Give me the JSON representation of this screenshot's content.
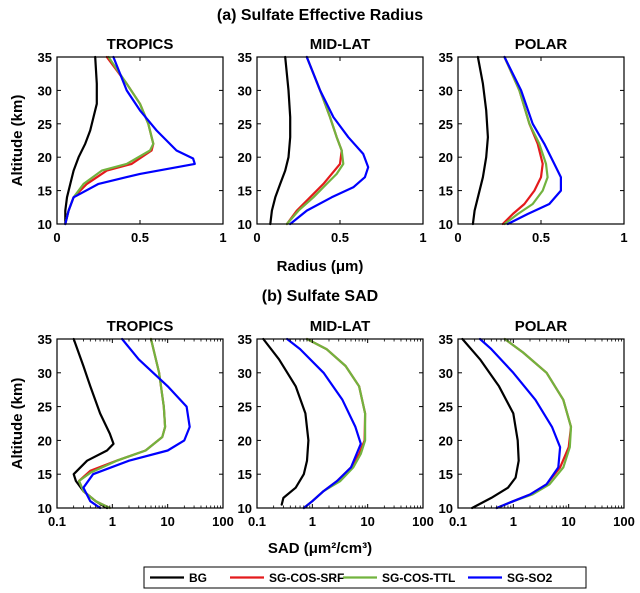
{
  "chart_data": [
    {
      "type": "line",
      "section_title": "(a) Sulfate Effective Radius",
      "title": "TROPICS",
      "ylabel": "Altitude (km)",
      "xlabel": "",
      "xscale": "linear",
      "xlim": [
        0,
        1
      ],
      "ylim": [
        10,
        35
      ],
      "xticks": [
        "0",
        "0.5",
        "1"
      ],
      "yticks": [
        "10",
        "15",
        "20",
        "25",
        "30",
        "35"
      ],
      "series": [
        {
          "name": "BG",
          "color": "#000000",
          "x": [
            0.05,
            0.05,
            0.06,
            0.08,
            0.1,
            0.13,
            0.17,
            0.2,
            0.22,
            0.24,
            0.24,
            0.23
          ],
          "y": [
            10,
            12,
            14,
            16,
            18,
            20,
            22,
            24,
            26,
            28,
            31,
            35
          ]
        },
        {
          "name": "SG-COS-SRF",
          "color": "#e41a1c",
          "x": [
            0.05,
            0.07,
            0.1,
            0.18,
            0.3,
            0.45,
            0.57,
            0.58,
            0.55,
            0.5,
            0.42,
            0.3
          ],
          "y": [
            10,
            12,
            14,
            16,
            18,
            19,
            21,
            22,
            25,
            28,
            31,
            35
          ]
        },
        {
          "name": "SG-COS-TTL",
          "color": "#72b33e",
          "x": [
            0.05,
            0.07,
            0.1,
            0.16,
            0.27,
            0.42,
            0.56,
            0.58,
            0.55,
            0.5,
            0.42,
            0.31
          ],
          "y": [
            10,
            12,
            14,
            16,
            18,
            19,
            21,
            22,
            25,
            28,
            31,
            35
          ]
        },
        {
          "name": "SG-SO2",
          "color": "#0000ff",
          "x": [
            0.05,
            0.07,
            0.1,
            0.25,
            0.5,
            0.83,
            0.82,
            0.72,
            0.6,
            0.5,
            0.42,
            0.34
          ],
          "y": [
            10,
            12,
            14,
            16,
            17.5,
            19,
            19.8,
            21,
            24,
            27,
            30,
            35
          ]
        }
      ]
    },
    {
      "type": "line",
      "title": "MID-LAT",
      "xlabel": "Radius (μm)",
      "ylabel": "",
      "xscale": "linear",
      "xlim": [
        0,
        1
      ],
      "ylim": [
        10,
        35
      ],
      "xticks": [
        "0",
        "0.5",
        "1"
      ],
      "yticks": [
        "10",
        "15",
        "20",
        "25",
        "30",
        "35"
      ],
      "series": [
        {
          "name": "BG",
          "color": "#000000",
          "x": [
            0.08,
            0.09,
            0.11,
            0.14,
            0.17,
            0.19,
            0.2,
            0.2,
            0.19,
            0.17
          ],
          "y": [
            10,
            12,
            14,
            16,
            18,
            20,
            23,
            26,
            30,
            35
          ]
        },
        {
          "name": "SG-COS-SRF",
          "color": "#e41a1c",
          "x": [
            0.18,
            0.24,
            0.32,
            0.4,
            0.45,
            0.5,
            0.51,
            0.48,
            0.44,
            0.38,
            0.3
          ],
          "y": [
            10,
            12,
            14,
            16,
            17.5,
            19,
            21,
            23,
            26,
            30,
            35
          ]
        },
        {
          "name": "SG-COS-TTL",
          "color": "#72b33e",
          "x": [
            0.18,
            0.25,
            0.34,
            0.42,
            0.48,
            0.52,
            0.51,
            0.48,
            0.44,
            0.38,
            0.3
          ],
          "y": [
            10,
            12,
            14,
            16,
            17.5,
            19,
            21,
            23,
            26,
            30,
            35
          ]
        },
        {
          "name": "SG-SO2",
          "color": "#0000ff",
          "x": [
            0.2,
            0.3,
            0.45,
            0.58,
            0.65,
            0.67,
            0.64,
            0.55,
            0.46,
            0.38,
            0.3
          ],
          "y": [
            10,
            12,
            14,
            15.5,
            17,
            18.5,
            20.5,
            23,
            26,
            30,
            35
          ]
        }
      ]
    },
    {
      "type": "line",
      "title": "POLAR",
      "xlabel": "",
      "ylabel": "",
      "xscale": "linear",
      "xlim": [
        0,
        1
      ],
      "ylim": [
        10,
        35
      ],
      "xticks": [
        "0",
        "0.5",
        "1"
      ],
      "yticks": [
        "10",
        "15",
        "20",
        "25",
        "30",
        "35"
      ],
      "series": [
        {
          "name": "BG",
          "color": "#000000",
          "x": [
            0.09,
            0.1,
            0.12,
            0.15,
            0.17,
            0.18,
            0.17,
            0.15,
            0.12
          ],
          "y": [
            10,
            12,
            14,
            17,
            20,
            23,
            27,
            31,
            35
          ]
        },
        {
          "name": "SG-COS-SRF",
          "color": "#e41a1c",
          "x": [
            0.27,
            0.33,
            0.4,
            0.46,
            0.5,
            0.51,
            0.48,
            0.43,
            0.37,
            0.28
          ],
          "y": [
            10,
            11.5,
            13,
            15,
            17,
            19,
            22,
            25,
            30,
            35
          ]
        },
        {
          "name": "SG-COS-TTL",
          "color": "#72b33e",
          "x": [
            0.28,
            0.36,
            0.45,
            0.51,
            0.54,
            0.53,
            0.49,
            0.43,
            0.37,
            0.28
          ],
          "y": [
            10,
            11.5,
            13,
            15,
            17,
            19,
            22,
            25,
            30,
            35
          ]
        },
        {
          "name": "SG-SO2",
          "color": "#0000ff",
          "x": [
            0.3,
            0.42,
            0.55,
            0.62,
            0.62,
            0.58,
            0.52,
            0.45,
            0.38,
            0.28
          ],
          "y": [
            10,
            11.5,
            13,
            15,
            17,
            19,
            22,
            25,
            30,
            35
          ]
        }
      ]
    },
    {
      "type": "line",
      "section_title": "(b) Sulfate SAD",
      "title": "TROPICS",
      "ylabel": "Altitude (km)",
      "xlabel": "",
      "xscale": "log",
      "xlim": [
        0.1,
        100
      ],
      "ylim": [
        10,
        35
      ],
      "xticks": [
        "0.1",
        "1",
        "10",
        "100"
      ],
      "yticks": [
        "10",
        "15",
        "20",
        "25",
        "30",
        "35"
      ],
      "series": [
        {
          "name": "BG",
          "color": "#000000",
          "x": [
            0.8,
            0.5,
            0.3,
            0.22,
            0.2,
            0.35,
            0.8,
            1.05,
            0.9,
            0.6,
            0.4,
            0.3,
            0.2
          ],
          "y": [
            10,
            11,
            12.5,
            14,
            15,
            17,
            18.5,
            19.5,
            21,
            24,
            28,
            31,
            35
          ]
        },
        {
          "name": "SG-COS-SRF",
          "color": "#e41a1c",
          "x": [
            0.9,
            0.5,
            0.3,
            0.25,
            0.4,
            1.2,
            4,
            8,
            9,
            8.5,
            7,
            5
          ],
          "y": [
            10,
            11,
            12.5,
            14,
            15.5,
            17,
            18.5,
            20.5,
            22,
            25,
            30,
            35
          ]
        },
        {
          "name": "SG-COS-TTL",
          "color": "#72b33e",
          "x": [
            0.9,
            0.5,
            0.3,
            0.25,
            0.4,
            1.2,
            4,
            8,
            9,
            8.5,
            7,
            5
          ],
          "y": [
            10,
            11,
            12.5,
            14,
            15.2,
            17,
            18.5,
            20.5,
            22,
            25,
            30,
            35
          ]
        },
        {
          "name": "SG-SO2",
          "color": "#0000ff",
          "x": [
            0.6,
            0.4,
            0.3,
            0.45,
            2,
            10,
            20,
            25,
            22,
            10,
            3,
            1.5
          ],
          "y": [
            10,
            11,
            13,
            15,
            17,
            18.5,
            20,
            22,
            25,
            28,
            32,
            35
          ]
        }
      ]
    },
    {
      "type": "line",
      "title": "MID-LAT",
      "xlabel": "SAD (μm²/cm³)",
      "ylabel": "",
      "xscale": "log",
      "xlim": [
        0.1,
        100
      ],
      "ylim": [
        10,
        35
      ],
      "xticks": [
        "0.1",
        "1",
        "10",
        "100"
      ],
      "yticks": [
        "10",
        "15",
        "20",
        "25",
        "30",
        "35"
      ],
      "series": [
        {
          "name": "BG",
          "color": "#000000",
          "x": [
            0.28,
            0.3,
            0.5,
            0.7,
            0.8,
            0.85,
            0.75,
            0.5,
            0.25,
            0.13
          ],
          "y": [
            10.5,
            11.5,
            13,
            15,
            17,
            20,
            24,
            28,
            32,
            35
          ]
        },
        {
          "name": "SG-COS-SRF",
          "color": "#e41a1c",
          "x": [
            0.7,
            1,
            1.6,
            2.8,
            5,
            7,
            8.8,
            9,
            7,
            4,
            1.8,
            0.8
          ],
          "y": [
            10,
            11,
            12.5,
            14,
            16,
            18,
            20,
            24,
            28,
            31,
            33.5,
            35
          ]
        },
        {
          "name": "SG-COS-TTL",
          "color": "#72b33e",
          "x": [
            0.7,
            1,
            1.6,
            3.2,
            5.5,
            7.5,
            9,
            9,
            7,
            4,
            1.8,
            0.8
          ],
          "y": [
            10,
            11,
            12.5,
            14,
            16,
            18,
            20,
            24,
            28,
            31,
            33.5,
            35
          ]
        },
        {
          "name": "SG-SO2",
          "color": "#0000ff",
          "x": [
            0.7,
            1,
            1.6,
            2.8,
            5,
            7.5,
            6,
            3.5,
            1.6,
            0.6,
            0.35
          ],
          "y": [
            10,
            11,
            12.5,
            14,
            16,
            19.5,
            22,
            26,
            30,
            33.5,
            35
          ]
        }
      ]
    },
    {
      "type": "line",
      "title": "POLAR",
      "xlabel": "",
      "ylabel": "",
      "xscale": "log",
      "xlim": [
        0.1,
        100
      ],
      "ylim": [
        10,
        35
      ],
      "xticks": [
        "0.1",
        "1",
        "10",
        "100"
      ],
      "yticks": [
        "10",
        "15",
        "20",
        "25",
        "30",
        "35"
      ],
      "series": [
        {
          "name": "BG",
          "color": "#000000",
          "x": [
            0.18,
            0.4,
            0.8,
            1.1,
            1.25,
            1.2,
            1,
            0.55,
            0.25,
            0.12
          ],
          "y": [
            10,
            11.5,
            13,
            14.5,
            17,
            20,
            24,
            28,
            32,
            35
          ]
        },
        {
          "name": "SG-COS-SRF",
          "color": "#e41a1c",
          "x": [
            0.5,
            1,
            2,
            4,
            7,
            10,
            11,
            8,
            4,
            1.5,
            0.7
          ],
          "y": [
            10,
            11,
            12,
            13.5,
            16,
            19,
            22,
            26,
            30,
            33,
            35
          ]
        },
        {
          "name": "SG-COS-TTL",
          "color": "#72b33e",
          "x": [
            0.5,
            1,
            2.2,
            4.5,
            8,
            10.5,
            11,
            8,
            4,
            1.5,
            0.7
          ],
          "y": [
            10,
            11,
            12,
            13.5,
            16,
            19,
            22,
            26,
            30,
            33,
            35
          ]
        },
        {
          "name": "SG-SO2",
          "color": "#0000ff",
          "x": [
            0.5,
            1,
            2,
            4,
            6.5,
            7,
            5,
            2.5,
            1,
            0.4,
            0.25
          ],
          "y": [
            10,
            11,
            12,
            13.5,
            16,
            19,
            22,
            26,
            30,
            33.5,
            35
          ]
        }
      ]
    }
  ],
  "legend": {
    "position": "bottom",
    "entries": [
      {
        "label": "BG",
        "color": "#000000"
      },
      {
        "label": "SG-COS-SRF",
        "color": "#e41a1c"
      },
      {
        "label": "SG-COS-TTL",
        "color": "#72b33e"
      },
      {
        "label": "SG-SO2",
        "color": "#0000ff"
      }
    ]
  }
}
